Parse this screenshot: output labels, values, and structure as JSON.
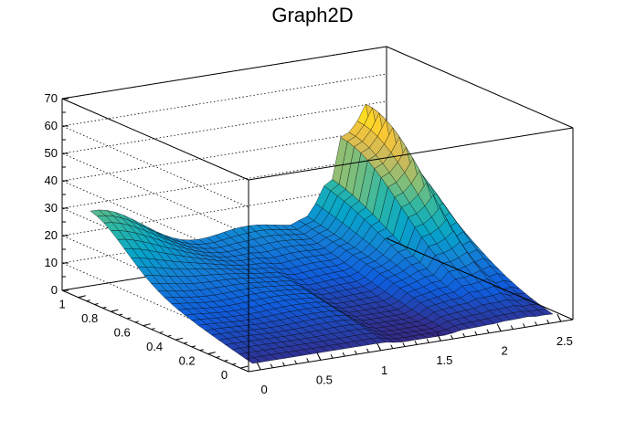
{
  "chart_data": {
    "type": "surface",
    "title": "Graph2D",
    "xlim": [
      -0.1,
      2.6
    ],
    "ylim": [
      -0.05,
      1.1
    ],
    "zlim": [
      0,
      70
    ],
    "x_ticks": [
      "0",
      "0.5",
      "1",
      "1.5",
      "2",
      "2.5"
    ],
    "x_tick_values": [
      0,
      0.5,
      1,
      1.5,
      2,
      2.5
    ],
    "y_ticks": [
      "0",
      "0.2",
      "0.4",
      "0.6",
      "0.8",
      "1"
    ],
    "y_tick_values": [
      0,
      0.2,
      0.4,
      0.6,
      0.8,
      1
    ],
    "z_ticks": [
      "0",
      "10",
      "20",
      "30",
      "40",
      "50",
      "60",
      "70"
    ],
    "z_tick_values": [
      0,
      10,
      20,
      30,
      40,
      50,
      60,
      70
    ],
    "grid": true,
    "colormap": [
      "#352a87",
      "#0f5cdd",
      "#1481d6",
      "#06a4ca",
      "#2eb7a4",
      "#87bf77",
      "#d1bb59",
      "#fec832",
      "#f9fb0e"
    ],
    "surface_summary": {
      "corner_x0_y1": 32,
      "plateau_back": 15,
      "plateau_front": 1,
      "dip_x_1_1_to_1_6": 0,
      "spike_peak": {
        "x": 2.25,
        "y": 1.0,
        "z": 55
      }
    }
  }
}
